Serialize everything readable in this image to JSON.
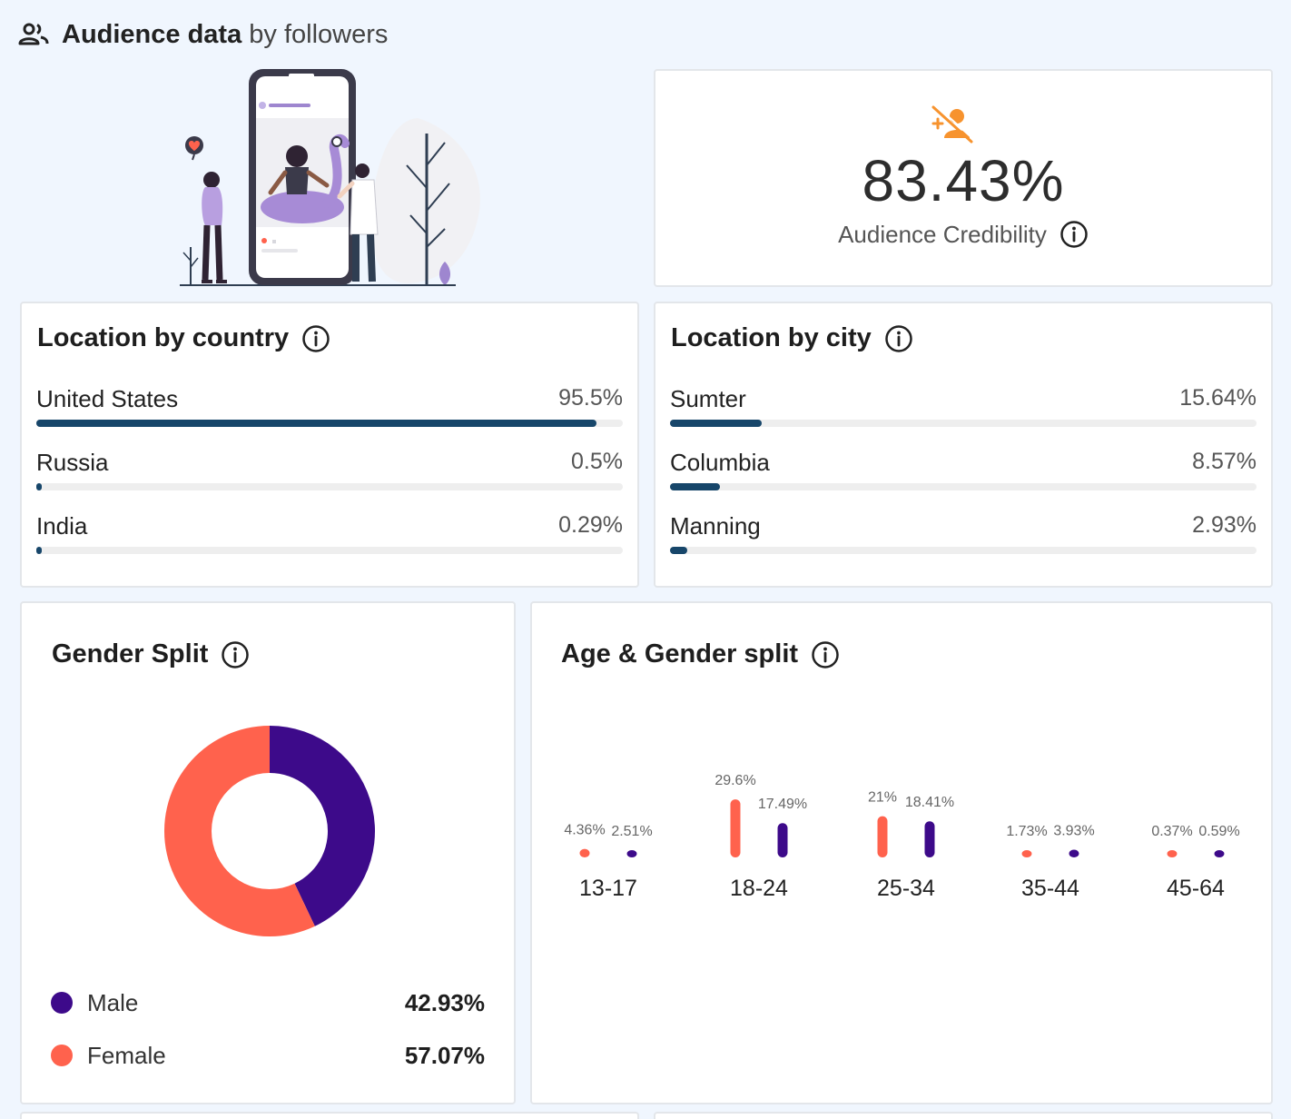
{
  "header": {
    "title_bold": "Audience data",
    "title_light": "by followers",
    "icon": "people-icon"
  },
  "credibility": {
    "value": "83.43%",
    "label": "Audience Credibility",
    "icon": "fake-followers-icon",
    "accent": "#f7932e"
  },
  "location_country": {
    "title": "Location by country",
    "items": [
      {
        "name": "United States",
        "value": "95.5%",
        "percent": 95.5
      },
      {
        "name": "Russia",
        "value": "0.5%",
        "percent": 0.5
      },
      {
        "name": "India",
        "value": "0.29%",
        "percent": 0.29
      }
    ]
  },
  "location_city": {
    "title": "Location by city",
    "items": [
      {
        "name": "Sumter",
        "value": "15.64%",
        "percent": 15.64
      },
      {
        "name": "Columbia",
        "value": "8.57%",
        "percent": 8.57
      },
      {
        "name": "Manning",
        "value": "2.93%",
        "percent": 2.93
      }
    ]
  },
  "gender_split": {
    "title": "Gender Split",
    "male": {
      "label": "Male",
      "value": "42.93%",
      "color": "#3d0a8a"
    },
    "female": {
      "label": "Female",
      "value": "57.07%",
      "color": "#ff624d"
    }
  },
  "age_gender": {
    "title": "Age & Gender split"
  },
  "colors": {
    "bar": "#17466a",
    "track": "#eeeeee",
    "male": "#3d0a8a",
    "female": "#ff624d"
  },
  "chart_data": [
    {
      "type": "pie",
      "title": "Gender Split",
      "categories": [
        "Male",
        "Female"
      ],
      "values": [
        42.93,
        57.07
      ],
      "colors": [
        "#3d0a8a",
        "#ff624d"
      ]
    },
    {
      "type": "bar",
      "title": "Age & Gender split",
      "categories": [
        "13-17",
        "18-24",
        "25-34",
        "35-44",
        "45-64"
      ],
      "series": [
        {
          "name": "Female",
          "color": "#ff624d",
          "values": [
            4.36,
            29.6,
            21,
            1.73,
            0.37
          ],
          "labels": [
            "4.36%",
            "29.6%",
            "21%",
            "1.73%",
            "0.37%"
          ]
        },
        {
          "name": "Male",
          "color": "#3d0a8a",
          "values": [
            2.51,
            17.49,
            18.41,
            3.93,
            0.59
          ],
          "labels": [
            "2.51%",
            "17.49%",
            "18.41%",
            "3.93%",
            "0.59%"
          ]
        }
      ]
    }
  ]
}
